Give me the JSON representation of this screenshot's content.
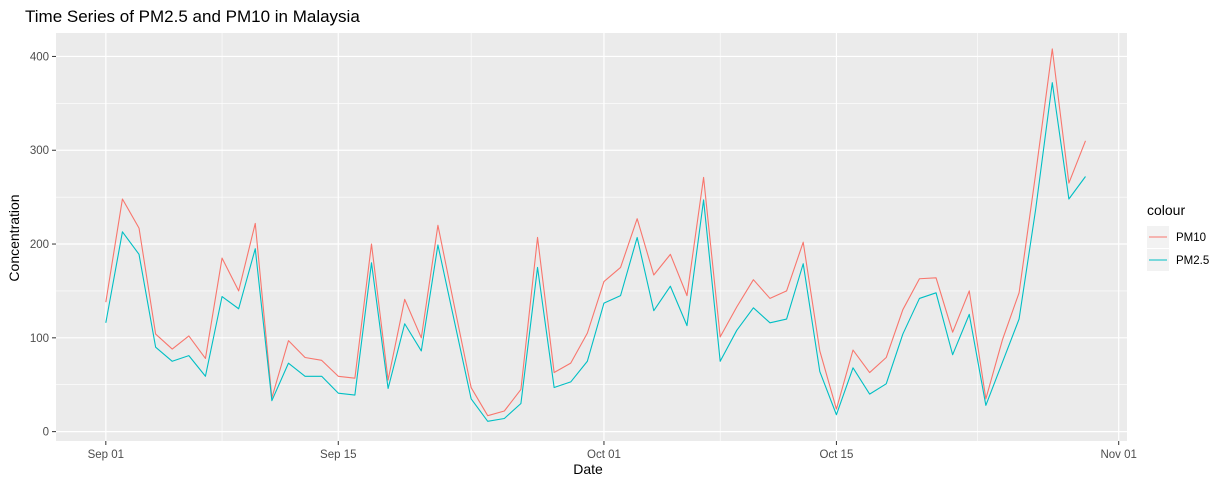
{
  "chart_data": {
    "type": "line",
    "title": "Time Series of PM2.5 and PM10 in Malaysia",
    "xlabel": "Date",
    "ylabel": "Concentration",
    "ylim": [
      -10,
      425
    ],
    "yticks": [
      0,
      100,
      200,
      300,
      400
    ],
    "xlim_day": [
      -3,
      61.5
    ],
    "xticks": [
      {
        "day": 0,
        "label": "Sep 01"
      },
      {
        "day": 14,
        "label": "Sep 15"
      },
      {
        "day": 30,
        "label": "Oct 01"
      },
      {
        "day": 44,
        "label": "Oct 15"
      },
      {
        "day": 61,
        "label": "Nov 01"
      }
    ],
    "x_start": "2019-09-01",
    "legend": {
      "title": "colour",
      "position": "right"
    },
    "colors": {
      "PM10": "#F8766D",
      "PM2.5": "#00BFC4",
      "panel": "#EBEBEB",
      "grid": "#FFFFFF"
    },
    "series": [
      {
        "name": "PM10",
        "values": [
          138,
          248,
          217,
          104,
          88,
          102,
          78,
          185,
          150,
          222,
          36,
          97,
          79,
          76,
          59,
          57,
          200,
          55,
          141,
          100,
          220,
          133,
          47,
          17,
          22,
          45,
          207,
          63,
          73,
          105,
          160,
          175,
          227,
          167,
          189,
          145,
          271,
          101,
          133,
          162,
          142,
          150,
          202,
          86,
          24,
          87,
          63,
          79,
          130,
          163,
          164,
          106,
          150,
          35,
          98,
          148,
          275,
          408,
          265,
          310
        ]
      },
      {
        "name": "PM2.5",
        "values": [
          116,
          213,
          189,
          90,
          75,
          81,
          59,
          144,
          131,
          195,
          33,
          73,
          59,
          59,
          41,
          39,
          180,
          46,
          115,
          86,
          199,
          117,
          35,
          11,
          14,
          30,
          175,
          47,
          53,
          75,
          137,
          145,
          207,
          129,
          155,
          113,
          247,
          75,
          108,
          132,
          116,
          120,
          179,
          64,
          18,
          68,
          40,
          51,
          104,
          142,
          148,
          82,
          125,
          28,
          74,
          120,
          237,
          372,
          248,
          272
        ]
      }
    ]
  }
}
